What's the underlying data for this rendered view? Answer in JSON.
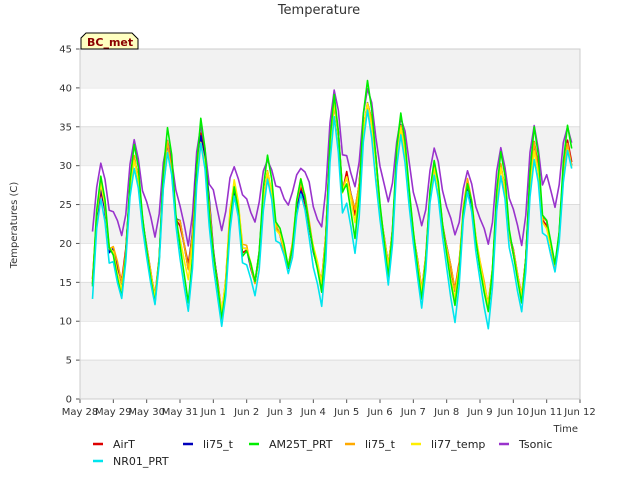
{
  "chart_data": {
    "type": "line",
    "title": "Temperature",
    "badge": "BC_met",
    "xlabel": "Time",
    "ylabel": "Temperatures (C)",
    "ylim": [
      0,
      45
    ],
    "yticks": [
      0,
      5,
      10,
      15,
      20,
      25,
      30,
      35,
      40,
      45
    ],
    "grid": "horizontal bands",
    "legend_position": "bottom",
    "x_tick_labels": [
      "May 28",
      "May 29",
      "May 30",
      "May 31",
      "Jun 1",
      "Jun 2",
      "Jun 3",
      "Jun 4",
      "Jun 5",
      "Jun 6",
      "Jun 7",
      "Jun 8",
      "Jun 9",
      "Jun 10",
      "Jun 11",
      "Jun 12"
    ],
    "x_range_days": [
      "2024-05-28",
      "2024-06-12"
    ],
    "daily_extremes_note": "per-day min/max of each series",
    "day_labels": [
      "May 28",
      "May 29",
      "May 30",
      "May 31",
      "Jun 1",
      "Jun 2",
      "Jun 3",
      "Jun 4",
      "Jun 5",
      "Jun 6",
      "Jun 7",
      "Jun 8",
      "Jun 9",
      "Jun 10",
      "Jun 11"
    ],
    "series": [
      {
        "name": "AirT",
        "color": "#dd0000",
        "mins": [
          11,
          15,
          13,
          17,
          11,
          15,
          17,
          15,
          24,
          17,
          14,
          14,
          12,
          13,
          17
        ],
        "maxs": [
          27,
          31,
          33,
          34,
          27,
          29,
          27,
          38,
          38,
          35,
          30,
          27,
          30,
          33,
          33
        ]
      },
      {
        "name": "li75_t",
        "color": "#0000bb",
        "mins": [
          11,
          15,
          13,
          17,
          11,
          15,
          17,
          15,
          24,
          17,
          14,
          14,
          12,
          13,
          17
        ],
        "maxs": [
          27,
          31,
          33,
          34,
          27,
          29,
          27,
          38,
          38,
          35,
          30,
          27,
          30,
          33,
          33
        ]
      },
      {
        "name": "AM25T_PRT",
        "color": "#00ee00",
        "mins": [
          9,
          13,
          12,
          12,
          10,
          15,
          17,
          14,
          21,
          16,
          13,
          12,
          11,
          12,
          17
        ],
        "maxs": [
          29,
          33,
          35,
          36,
          27,
          31,
          28,
          39,
          41,
          37,
          31,
          28,
          32,
          35,
          35
        ]
      },
      {
        "name": "li75_t",
        "color": "#ffaa00",
        "mins": [
          11,
          15,
          13,
          17,
          11,
          15,
          17,
          15,
          24,
          17,
          14,
          14,
          12,
          13,
          17
        ],
        "maxs": [
          28,
          31,
          33,
          33,
          28,
          29,
          28,
          38,
          38,
          35,
          30,
          28,
          30,
          33,
          33
        ]
      },
      {
        "name": "li77_temp",
        "color": "#ffee00",
        "mins": [
          10,
          14,
          13,
          15,
          11,
          15,
          17,
          15,
          23,
          17,
          14,
          13,
          12,
          13,
          17
        ],
        "maxs": [
          28,
          31,
          32,
          33,
          28,
          29,
          28,
          38,
          38,
          35,
          30,
          28,
          30,
          32,
          32
        ]
      },
      {
        "name": "Tsonic",
        "color": "#9933cc",
        "mins": [
          19,
          21,
          21,
          20,
          22,
          23,
          25,
          22,
          27,
          25,
          22,
          21,
          20,
          20,
          25
        ],
        "maxs": [
          30,
          33,
          33,
          35,
          30,
          31,
          30,
          40,
          40,
          36,
          32,
          29,
          32,
          35,
          35
        ]
      },
      {
        "name": "NR01_PRT",
        "color": "#00e5ee",
        "mins": [
          8,
          13,
          12,
          11,
          9,
          13,
          16,
          12,
          19,
          15,
          12,
          10,
          9,
          11,
          16
        ],
        "maxs": [
          26,
          30,
          32,
          33,
          26,
          28,
          26,
          36,
          37,
          34,
          29,
          27,
          29,
          31,
          32
        ]
      }
    ]
  },
  "legend": [
    {
      "label": "AirT",
      "color": "#dd0000"
    },
    {
      "label": "li75_t",
      "color": "#0000bb"
    },
    {
      "label": "AM25T_PRT",
      "color": "#00ee00"
    },
    {
      "label": "li75_t",
      "color": "#ffaa00"
    },
    {
      "label": "li77_temp",
      "color": "#ffee00"
    },
    {
      "label": "Tsonic",
      "color": "#9933cc"
    },
    {
      "label": "NR01_PRT",
      "color": "#00e5ee"
    }
  ]
}
